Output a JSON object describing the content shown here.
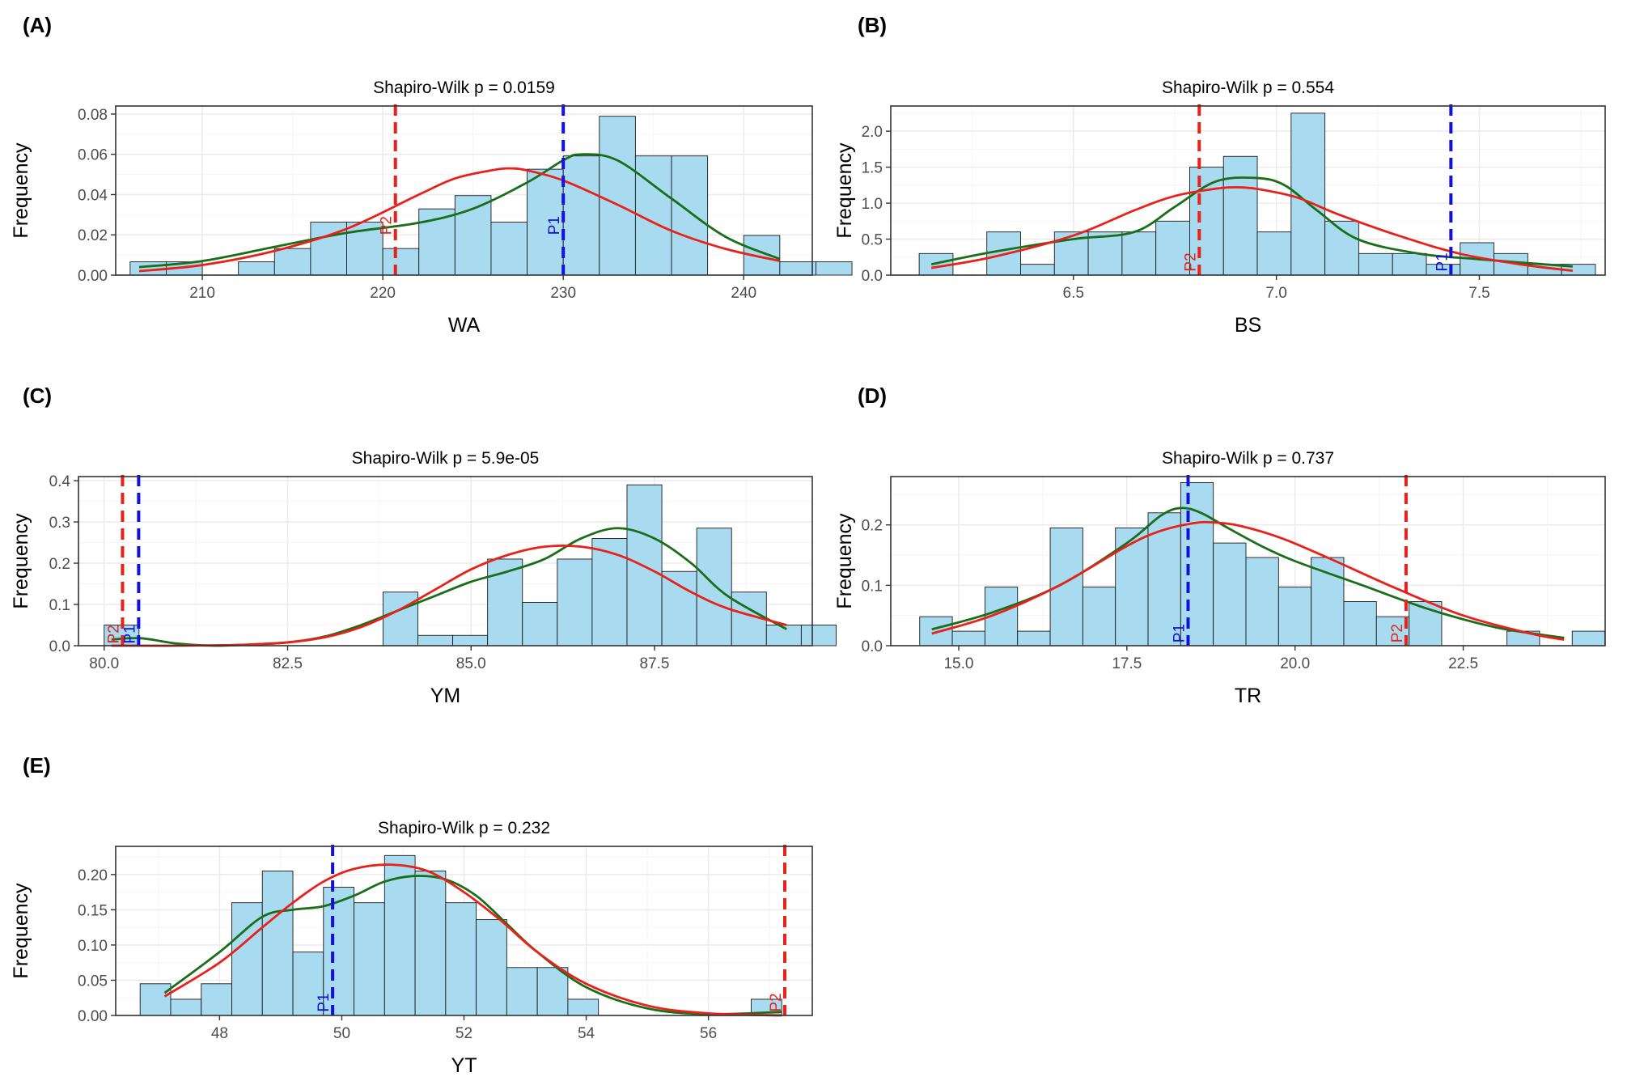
{
  "chart_data": [
    {
      "panel": "(A)",
      "type": "bar",
      "title": "Shapiro-Wilk p = 0.0159",
      "xlabel": "WA",
      "ylabel": "Frequency",
      "xlim": [
        205.2,
        243.8
      ],
      "ylim": [
        0,
        0.084
      ],
      "xticks": [
        210,
        220,
        230,
        240
      ],
      "xtick_labels": [
        "210",
        "220",
        "230",
        "240"
      ],
      "yticks": [
        0,
        0.02,
        0.04,
        0.06,
        0.08
      ],
      "ytick_labels": [
        "0.00",
        "0.02",
        "0.04",
        "0.06",
        "0.08"
      ],
      "bin_start": 206,
      "bin_width": 2,
      "values": [
        0.0066,
        0.0066,
        0,
        0.0066,
        0.0132,
        0.0263,
        0.0263,
        0.0132,
        0.0329,
        0.0395,
        0.0263,
        0.0526,
        0.0592,
        0.0789,
        0.0592,
        0.0592,
        0,
        0.0197,
        0.0066,
        0.0066
      ],
      "series": [
        {
          "name": "kernel-density",
          "color": "#1a6e1a",
          "x": [
            206.5,
            210,
            214,
            218,
            222,
            225,
            228,
            230,
            231,
            233,
            236,
            239,
            242
          ],
          "y": [
            0.004,
            0.007,
            0.014,
            0.021,
            0.026,
            0.033,
            0.046,
            0.057,
            0.06,
            0.057,
            0.038,
            0.019,
            0.008
          ]
        },
        {
          "name": "normal-fit",
          "color": "#e8211b",
          "x": [
            206.5,
            210,
            214,
            218,
            222,
            224,
            226,
            227,
            228,
            230,
            233,
            236,
            239,
            242
          ],
          "y": [
            0.002,
            0.005,
            0.012,
            0.023,
            0.04,
            0.048,
            0.052,
            0.053,
            0.052,
            0.047,
            0.035,
            0.022,
            0.013,
            0.007
          ]
        }
      ],
      "reference_lines": [
        {
          "label": "P2",
          "x": 220.7,
          "color": "#e8211b",
          "label_y": 0.02
        },
        {
          "label": "P1",
          "x": 230.0,
          "color": "#1010e0",
          "label_y": 0.02
        }
      ]
    },
    {
      "panel": "(B)",
      "type": "bar",
      "title": "Shapiro-Wilk p = 0.554",
      "xlabel": "BS",
      "ylabel": "Frequency",
      "xlim": [
        6.05,
        7.81
      ],
      "ylim": [
        0,
        2.35
      ],
      "xticks": [
        6.5,
        7.0,
        7.5
      ],
      "xtick_labels": [
        "6.5",
        "7.0",
        "7.5"
      ],
      "yticks": [
        0,
        0.5,
        1.0,
        1.5,
        2.0
      ],
      "ytick_labels": [
        "0.0",
        "0.5",
        "1.0",
        "1.5",
        "2.0"
      ],
      "bin_start": 6.12,
      "bin_width": 0.0833,
      "values": [
        0.3,
        0,
        0.6,
        0.15,
        0.6,
        0.6,
        0.6,
        0.75,
        1.5,
        1.65,
        0.6,
        2.25,
        0.75,
        0.3,
        0.3,
        0.15,
        0.45,
        0.3,
        0.15,
        0.15
      ],
      "series": [
        {
          "name": "kernel-density",
          "color": "#1a6e1a",
          "x": [
            6.15,
            6.3,
            6.5,
            6.65,
            6.75,
            6.85,
            6.95,
            7.02,
            7.1,
            7.2,
            7.35,
            7.5,
            7.73
          ],
          "y": [
            0.15,
            0.32,
            0.5,
            0.6,
            0.95,
            1.3,
            1.35,
            1.25,
            0.9,
            0.5,
            0.3,
            0.22,
            0.12
          ]
        },
        {
          "name": "normal-fit",
          "color": "#e8211b",
          "x": [
            6.15,
            6.3,
            6.5,
            6.65,
            6.75,
            6.85,
            6.9,
            6.95,
            7.05,
            7.15,
            7.3,
            7.45,
            7.6,
            7.73
          ],
          "y": [
            0.1,
            0.25,
            0.55,
            0.9,
            1.1,
            1.2,
            1.22,
            1.2,
            1.08,
            0.85,
            0.55,
            0.3,
            0.15,
            0.06
          ]
        }
      ],
      "reference_lines": [
        {
          "label": "P2",
          "x": 6.81,
          "color": "#e8211b",
          "label_y": 0.05
        },
        {
          "label": "P1",
          "x": 7.43,
          "color": "#1010e0",
          "label_y": 0.05
        }
      ]
    },
    {
      "panel": "(C)",
      "type": "bar",
      "title": "Shapiro-Wilk p = 5.9e-05",
      "xlabel": "YM",
      "ylabel": "Frequency",
      "xlim": [
        79.65,
        89.65
      ],
      "ylim": [
        0,
        0.41
      ],
      "xticks": [
        80.0,
        82.5,
        85.0,
        87.5
      ],
      "xtick_labels": [
        "80.0",
        "82.5",
        "85.0",
        "87.5"
      ],
      "yticks": [
        0,
        0.1,
        0.2,
        0.3,
        0.4
      ],
      "ytick_labels": [
        "0.0",
        "0.1",
        "0.2",
        "0.3",
        "0.4"
      ],
      "bin_start": 80.0,
      "bin_width": 0.475,
      "values": [
        0.05,
        0,
        0,
        0,
        0,
        0,
        0,
        0,
        0.13,
        0.025,
        0.025,
        0.21,
        0.105,
        0.21,
        0.26,
        0.39,
        0.18,
        0.285,
        0.13,
        0.05,
        0.05
      ],
      "series": [
        {
          "name": "kernel-density",
          "color": "#1a6e1a",
          "x": [
            80.1,
            80.5,
            81,
            81.5,
            82,
            82.5,
            83,
            83.5,
            84,
            84.5,
            85,
            85.5,
            86,
            86.5,
            87,
            87.5,
            88,
            88.5,
            89.3
          ],
          "y": [
            0.015,
            0.018,
            0.005,
            0.0,
            0.003,
            0.008,
            0.022,
            0.05,
            0.085,
            0.12,
            0.155,
            0.18,
            0.21,
            0.26,
            0.285,
            0.26,
            0.2,
            0.12,
            0.04
          ]
        },
        {
          "name": "normal-fit",
          "color": "#e8211b",
          "x": [
            80.1,
            80.5,
            81,
            81.5,
            82,
            82.5,
            83,
            83.5,
            84,
            84.5,
            85,
            85.5,
            86,
            86.5,
            87,
            87.5,
            88,
            88.5,
            89.3
          ],
          "y": [
            0.0,
            0.0,
            0.0,
            0.001,
            0.003,
            0.008,
            0.02,
            0.045,
            0.085,
            0.135,
            0.185,
            0.22,
            0.24,
            0.24,
            0.22,
            0.18,
            0.13,
            0.09,
            0.05
          ]
        }
      ],
      "reference_lines": [
        {
          "label": "P2",
          "x": 80.25,
          "color": "#e8211b",
          "label_y": 0.005
        },
        {
          "label": "P1",
          "x": 80.47,
          "color": "#1010e0",
          "label_y": 0.005
        }
      ]
    },
    {
      "panel": "(D)",
      "type": "bar",
      "title": "Shapiro-Wilk p = 0.737",
      "xlabel": "TR",
      "ylabel": "Frequency",
      "xlim": [
        13.99,
        24.61
      ],
      "ylim": [
        0,
        0.28
      ],
      "xticks": [
        15.0,
        17.5,
        20.0,
        22.5
      ],
      "xtick_labels": [
        "15.0",
        "17.5",
        "20.0",
        "22.5"
      ],
      "yticks": [
        0,
        0.1,
        0.2
      ],
      "ytick_labels": [
        "0.0",
        "0.1",
        "0.2"
      ],
      "bin_start": 14.42,
      "bin_width": 0.485,
      "values": [
        0.048,
        0.024,
        0.097,
        0.024,
        0.195,
        0.097,
        0.195,
        0.22,
        0.27,
        0.17,
        0.146,
        0.097,
        0.146,
        0.073,
        0.048,
        0.073,
        0,
        0,
        0.024,
        0,
        0.024
      ],
      "series": [
        {
          "name": "kernel-density",
          "color": "#1a6e1a",
          "x": [
            14.6,
            15.5,
            16.5,
            17.5,
            18,
            18.3,
            18.6,
            19,
            19.5,
            20,
            21,
            22,
            23,
            24
          ],
          "y": [
            0.027,
            0.055,
            0.1,
            0.17,
            0.215,
            0.228,
            0.22,
            0.195,
            0.165,
            0.14,
            0.1,
            0.06,
            0.03,
            0.013
          ]
        },
        {
          "name": "normal-fit",
          "color": "#e8211b",
          "x": [
            14.6,
            15.5,
            16.5,
            17.5,
            18,
            18.5,
            18.8,
            19.2,
            19.8,
            20.5,
            21.5,
            22.5,
            23.5,
            24
          ],
          "y": [
            0.02,
            0.05,
            0.1,
            0.165,
            0.19,
            0.203,
            0.204,
            0.198,
            0.178,
            0.145,
            0.095,
            0.05,
            0.02,
            0.01
          ]
        }
      ],
      "reference_lines": [
        {
          "label": "P1",
          "x": 18.41,
          "color": "#1010e0",
          "label_y": 0.005
        },
        {
          "label": "P2",
          "x": 21.65,
          "color": "#e8211b",
          "label_y": 0.005
        }
      ]
    },
    {
      "panel": "(E)",
      "type": "bar",
      "title": "Shapiro-Wilk p = 0.232",
      "xlabel": "YT",
      "ylabel": "Frequency",
      "xlim": [
        46.3,
        57.7
      ],
      "ylim": [
        0,
        0.24
      ],
      "xticks": [
        48,
        50,
        52,
        54,
        56
      ],
      "xtick_labels": [
        "48",
        "50",
        "52",
        "54",
        "56"
      ],
      "yticks": [
        0,
        0.05,
        0.1,
        0.15,
        0.2
      ],
      "ytick_labels": [
        "0.00",
        "0.05",
        "0.10",
        "0.15",
        "0.20"
      ],
      "bin_start": 46.7,
      "bin_width": 0.5,
      "values": [
        0.045,
        0.023,
        0.045,
        0.16,
        0.205,
        0.09,
        0.182,
        0.16,
        0.227,
        0.205,
        0.16,
        0.136,
        0.068,
        0.068,
        0.023,
        0,
        0,
        0,
        0,
        0,
        0.023
      ],
      "series": [
        {
          "name": "kernel-density",
          "color": "#1a6e1a",
          "x": [
            47.1,
            48,
            48.7,
            49.2,
            49.7,
            50.2,
            50.7,
            51.2,
            51.7,
            52.2,
            52.7,
            53.2,
            54,
            55,
            56,
            57.2
          ],
          "y": [
            0.032,
            0.09,
            0.14,
            0.15,
            0.155,
            0.17,
            0.19,
            0.198,
            0.193,
            0.17,
            0.13,
            0.09,
            0.04,
            0.01,
            0.002,
            0.005
          ]
        },
        {
          "name": "normal-fit",
          "color": "#e8211b",
          "x": [
            47.1,
            48,
            48.7,
            49.2,
            49.7,
            50.2,
            50.8,
            51.4,
            52,
            52.6,
            53.2,
            54,
            55,
            56,
            57.2
          ],
          "y": [
            0.027,
            0.075,
            0.125,
            0.16,
            0.19,
            0.208,
            0.214,
            0.205,
            0.175,
            0.135,
            0.09,
            0.045,
            0.014,
            0.003,
            0.0
          ]
        }
      ],
      "reference_lines": [
        {
          "label": "P1",
          "x": 49.85,
          "color": "#1010e0",
          "label_y": 0.005
        },
        {
          "label": "P2",
          "x": 57.25,
          "color": "#e8211b",
          "label_y": 0.005
        }
      ]
    }
  ],
  "style": {
    "bar_fill": "#a8dbef",
    "bar_stroke": "#1a1a1a",
    "grid_major": "#ebebeb",
    "grid_minor": "#f5f5f5",
    "panel_border": "#333333"
  }
}
